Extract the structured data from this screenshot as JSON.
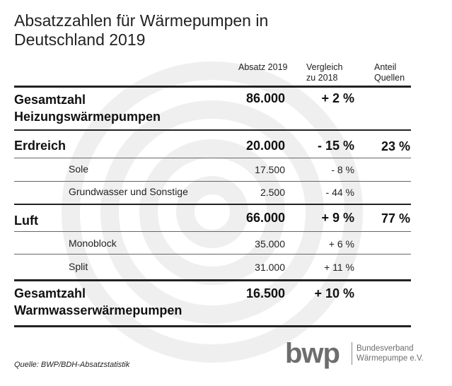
{
  "title_line1": "Absatzzahlen für Wärmepumpen in",
  "title_line2": "Deutschland 2019",
  "headers": {
    "absatz": "Absatz 2019",
    "vergleich_1": "Vergleich",
    "vergleich_2": "zu 2018",
    "anteil_1": "Anteil",
    "anteil_2": "Quellen"
  },
  "rows": [
    {
      "label1": "Gesamtzahl",
      "label2": "Heizungswärmepumpen",
      "absatz": "86.000",
      "vergleich": "+ 2 %",
      "anteil": ""
    },
    {
      "label1": "Erdreich",
      "absatz": "20.000",
      "vergleich": "- 15 %",
      "anteil": "23 %"
    },
    {
      "label1": "Sole",
      "absatz": "17.500",
      "vergleich": "- 8 %"
    },
    {
      "label1": "Grundwasser und Sonstige",
      "absatz": "2.500",
      "vergleich": "- 44 %"
    },
    {
      "label1": "Luft",
      "absatz": "66.000",
      "vergleich": "+ 9 %",
      "anteil": "77 %"
    },
    {
      "label1": "Monoblock",
      "absatz": "35.000",
      "vergleich": "+ 6 %"
    },
    {
      "label1": "Split",
      "absatz": "31.000",
      "vergleich": "+ 11 %"
    },
    {
      "label1": "Gesamtzahl",
      "label2": "Warmwasserwärmepumpen",
      "absatz": "16.500",
      "vergleich": "+ 10 %",
      "anteil": ""
    }
  ],
  "source": "Quelle: BWP/BDH-Absatzstatistik",
  "logo": {
    "mark": "bwp",
    "line1": "Bundesverband",
    "line2": "Wärmepumpe e.V.",
    "color": "#6d6d6d"
  },
  "watermark_color": "#efefef"
}
